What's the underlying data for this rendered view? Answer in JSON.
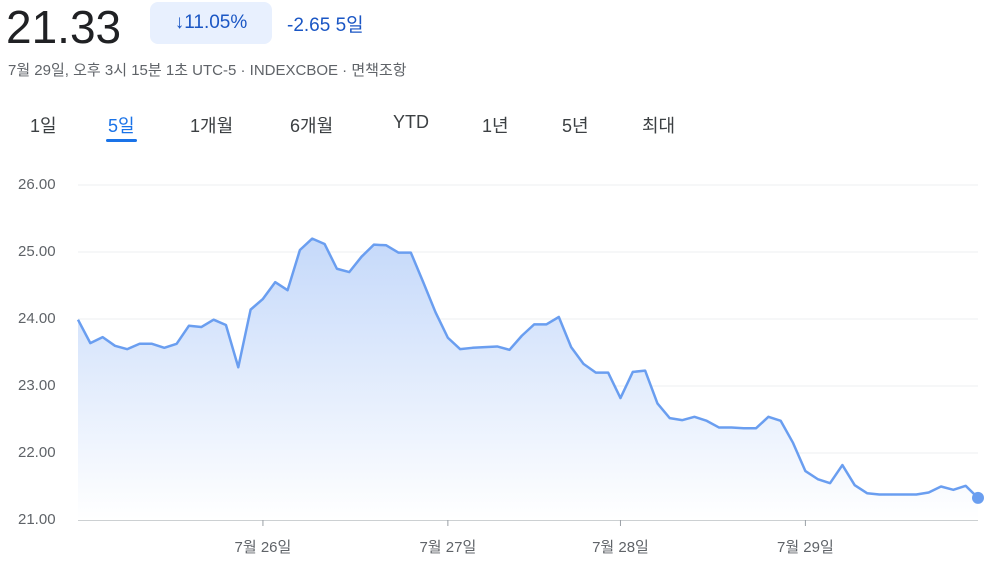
{
  "header": {
    "price": "21.33",
    "change_pct": "11.05%",
    "change": "-2.65",
    "period": "5일",
    "subtitle": "7월 29일, 오후 3시 15분 1초 UTC-5 · INDEXCBOE · 면책조항"
  },
  "tabs": {
    "items": [
      "1일",
      "5일",
      "1개월",
      "6개월",
      "YTD",
      "1년",
      "5년",
      "최대"
    ],
    "selected": 1
  },
  "chart_data": {
    "type": "area",
    "categories": [
      null,
      null,
      null,
      null,
      null,
      null,
      null,
      null,
      null,
      null,
      null,
      null,
      null,
      null,
      null,
      "7월 26일",
      null,
      null,
      null,
      null,
      null,
      null,
      null,
      null,
      null,
      null,
      null,
      null,
      null,
      null,
      "7월 27일",
      null,
      null,
      null,
      null,
      null,
      null,
      null,
      null,
      null,
      null,
      null,
      null,
      null,
      "7월 28일",
      null,
      null,
      null,
      null,
      null,
      null,
      null,
      null,
      null,
      null,
      null,
      null,
      null,
      null,
      "7월 29일",
      null,
      null,
      null,
      null,
      null,
      null,
      null,
      null,
      null,
      null,
      null,
      null,
      null,
      null
    ],
    "series": [
      {
        "color": "#6a9ef0",
        "values": [
          23.99,
          23.64,
          23.73,
          23.6,
          23.55,
          23.63,
          23.63,
          23.57,
          23.63,
          23.9,
          23.88,
          23.99,
          23.91,
          23.28,
          24.14,
          24.3,
          24.55,
          24.43,
          25.03,
          25.2,
          25.12,
          24.75,
          24.7,
          24.93,
          25.11,
          25.1,
          24.99,
          24.99,
          24.55,
          24.1,
          23.72,
          23.55,
          23.57,
          23.58,
          23.59,
          23.54,
          23.75,
          23.92,
          23.92,
          24.03,
          23.58,
          23.33,
          23.2,
          23.2,
          22.82,
          23.21,
          23.23,
          22.74,
          22.52,
          22.49,
          22.54,
          22.48,
          22.38,
          22.38,
          22.37,
          22.37,
          22.54,
          22.48,
          22.15,
          21.73,
          21.61,
          21.55,
          21.82,
          21.52,
          21.4,
          21.38,
          21.38,
          21.38,
          21.38,
          21.41,
          21.5,
          21.45,
          21.51,
          21.33
        ]
      }
    ],
    "ylim": [
      21,
      26
    ],
    "yticks": [
      {
        "value": 21,
        "label": "21.00"
      },
      {
        "value": 22,
        "label": "22.00"
      },
      {
        "value": 23,
        "label": "23.00"
      },
      {
        "value": 24,
        "label": "24.00"
      },
      {
        "value": 25,
        "label": "25.00"
      },
      {
        "value": 26,
        "label": "26.00"
      }
    ],
    "grid": true
  }
}
